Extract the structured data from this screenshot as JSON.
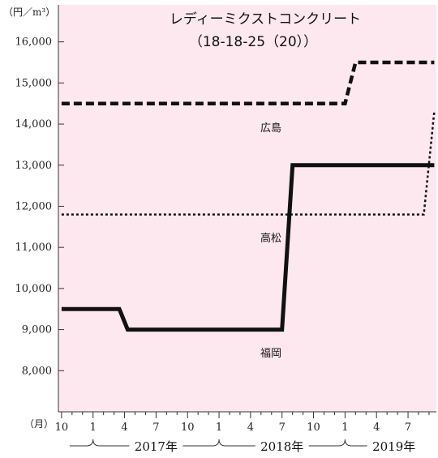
{
  "chart_data": {
    "type": "line",
    "title": "レディーミクストコンクリート",
    "subtitle": "（18-18-25（20））",
    "y_unit": "（円／m³）",
    "x_unit": "（月）",
    "ylim": [
      7000,
      16900
    ],
    "y_ticks": [
      8000,
      9000,
      10000,
      11000,
      12000,
      13000,
      14000,
      15000,
      16000
    ],
    "y_tick_labels": [
      "8,000",
      "9,000",
      "10,000",
      "11,000",
      "12,000",
      "13,000",
      "14,000",
      "15,000",
      "16,000"
    ],
    "x_tick_labels": [
      "10",
      "1",
      "4",
      "7",
      "10",
      "1",
      "4",
      "7",
      "10",
      "1",
      "4",
      "7"
    ],
    "x_tick_months": [
      0,
      3,
      6,
      9,
      12,
      15,
      18,
      21,
      24,
      27,
      30,
      33
    ],
    "x_range_months": [
      -0.3,
      35.7
    ],
    "year_labels": [
      "2017年",
      "2018年",
      "2019年"
    ],
    "month_index_note": "0 = 2016-10",
    "grid": false,
    "background": "#fde8f0",
    "series": [
      {
        "name": "広島",
        "style": "dashed-thick",
        "points": [
          [
            0,
            14500
          ],
          [
            27,
            14500
          ],
          [
            28,
            15500
          ],
          [
            35.5,
            15500
          ]
        ]
      },
      {
        "name": "高松",
        "style": "dotted",
        "points": [
          [
            0,
            11800
          ],
          [
            34.5,
            11800
          ],
          [
            35.5,
            14300
          ]
        ]
      },
      {
        "name": "福岡",
        "style": "solid-thick",
        "points": [
          [
            0,
            9500
          ],
          [
            5.5,
            9500
          ],
          [
            6.3,
            9000
          ],
          [
            21,
            9000
          ],
          [
            22,
            13000
          ],
          [
            35.5,
            13000
          ]
        ]
      }
    ]
  }
}
